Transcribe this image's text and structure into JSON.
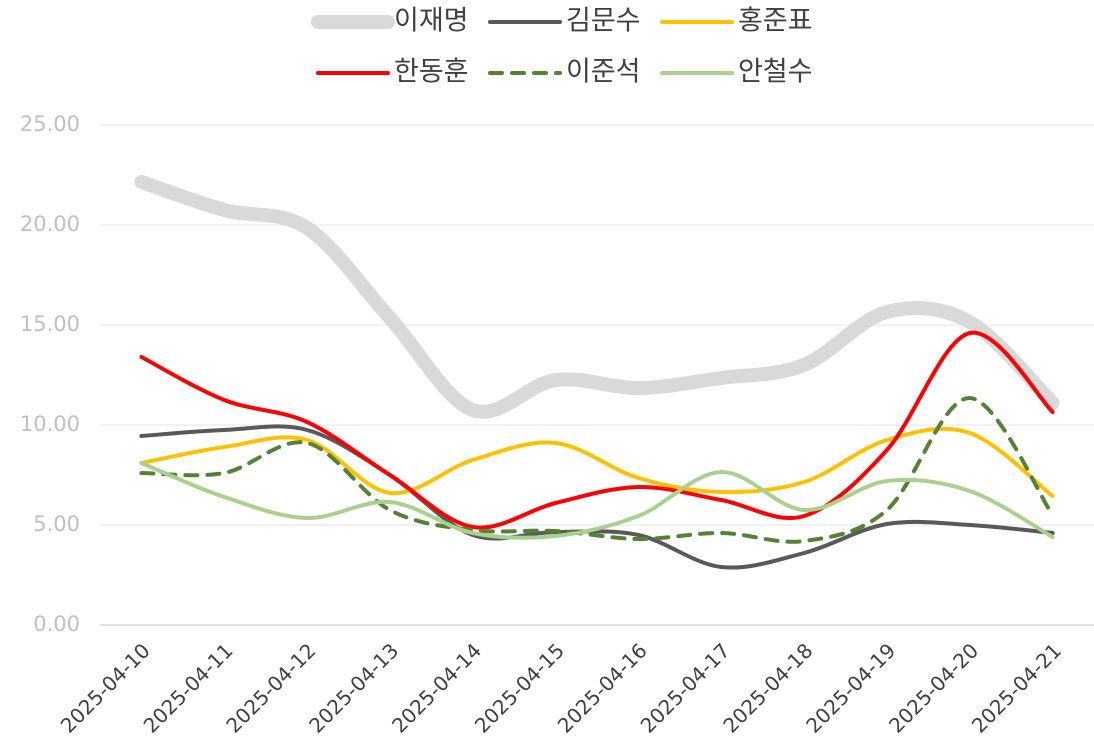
{
  "chart_data": {
    "type": "line",
    "x": [
      "2025-04-10",
      "2025-04-11",
      "2025-04-12",
      "2025-04-13",
      "2025-04-14",
      "2025-04-15",
      "2025-04-16",
      "2025-04-17",
      "2025-04-18",
      "2025-04-19",
      "2025-04-20",
      "2025-04-21"
    ],
    "series": [
      {
        "name": "이재명",
        "color": "#d9d9d9",
        "width": 14,
        "dashed": false,
        "values": [
          22.15,
          20.75,
          19.85,
          15.35,
          10.75,
          12.25,
          11.85,
          12.35,
          13.0,
          15.65,
          15.15,
          11.1
        ]
      },
      {
        "name": "김문수",
        "color": "#595959",
        "width": 4,
        "dashed": false,
        "values": [
          9.45,
          9.75,
          9.75,
          7.5,
          4.5,
          4.65,
          4.5,
          2.9,
          3.6,
          5.05,
          5.0,
          4.6
        ]
      },
      {
        "name": "홍준표",
        "color": "#ffc000",
        "width": 4,
        "dashed": false,
        "values": [
          8.1,
          8.9,
          9.25,
          6.6,
          8.25,
          9.1,
          7.35,
          6.65,
          7.15,
          9.25,
          9.6,
          6.45
        ]
      },
      {
        "name": "한동훈",
        "color": "#ff0000",
        "width": 4,
        "dashed": false,
        "values": [
          13.4,
          11.25,
          10.15,
          7.5,
          4.9,
          6.1,
          6.9,
          6.25,
          5.45,
          8.75,
          14.6,
          10.65
        ]
      },
      {
        "name": "이준석",
        "color": "#548235",
        "width": 4,
        "dashed": true,
        "values": [
          7.6,
          7.6,
          9.1,
          5.75,
          4.75,
          4.7,
          4.3,
          4.6,
          4.2,
          5.75,
          11.35,
          5.5
        ]
      },
      {
        "name": "안철수",
        "color": "#a9d18e",
        "width": 4,
        "dashed": false,
        "values": [
          8.1,
          6.4,
          5.35,
          6.15,
          4.6,
          4.45,
          5.45,
          7.65,
          5.75,
          7.2,
          6.7,
          4.4
        ]
      }
    ],
    "ylim": [
      0,
      25
    ],
    "yticks": [
      {
        "value": 0,
        "label": "0.00"
      },
      {
        "value": 5,
        "label": "5.00"
      },
      {
        "value": 10,
        "label": "10.00"
      },
      {
        "value": 15,
        "label": "15.00"
      },
      {
        "value": 20,
        "label": "20.00"
      },
      {
        "value": 25,
        "label": "25.00"
      }
    ],
    "grid": true,
    "legend": "top"
  }
}
